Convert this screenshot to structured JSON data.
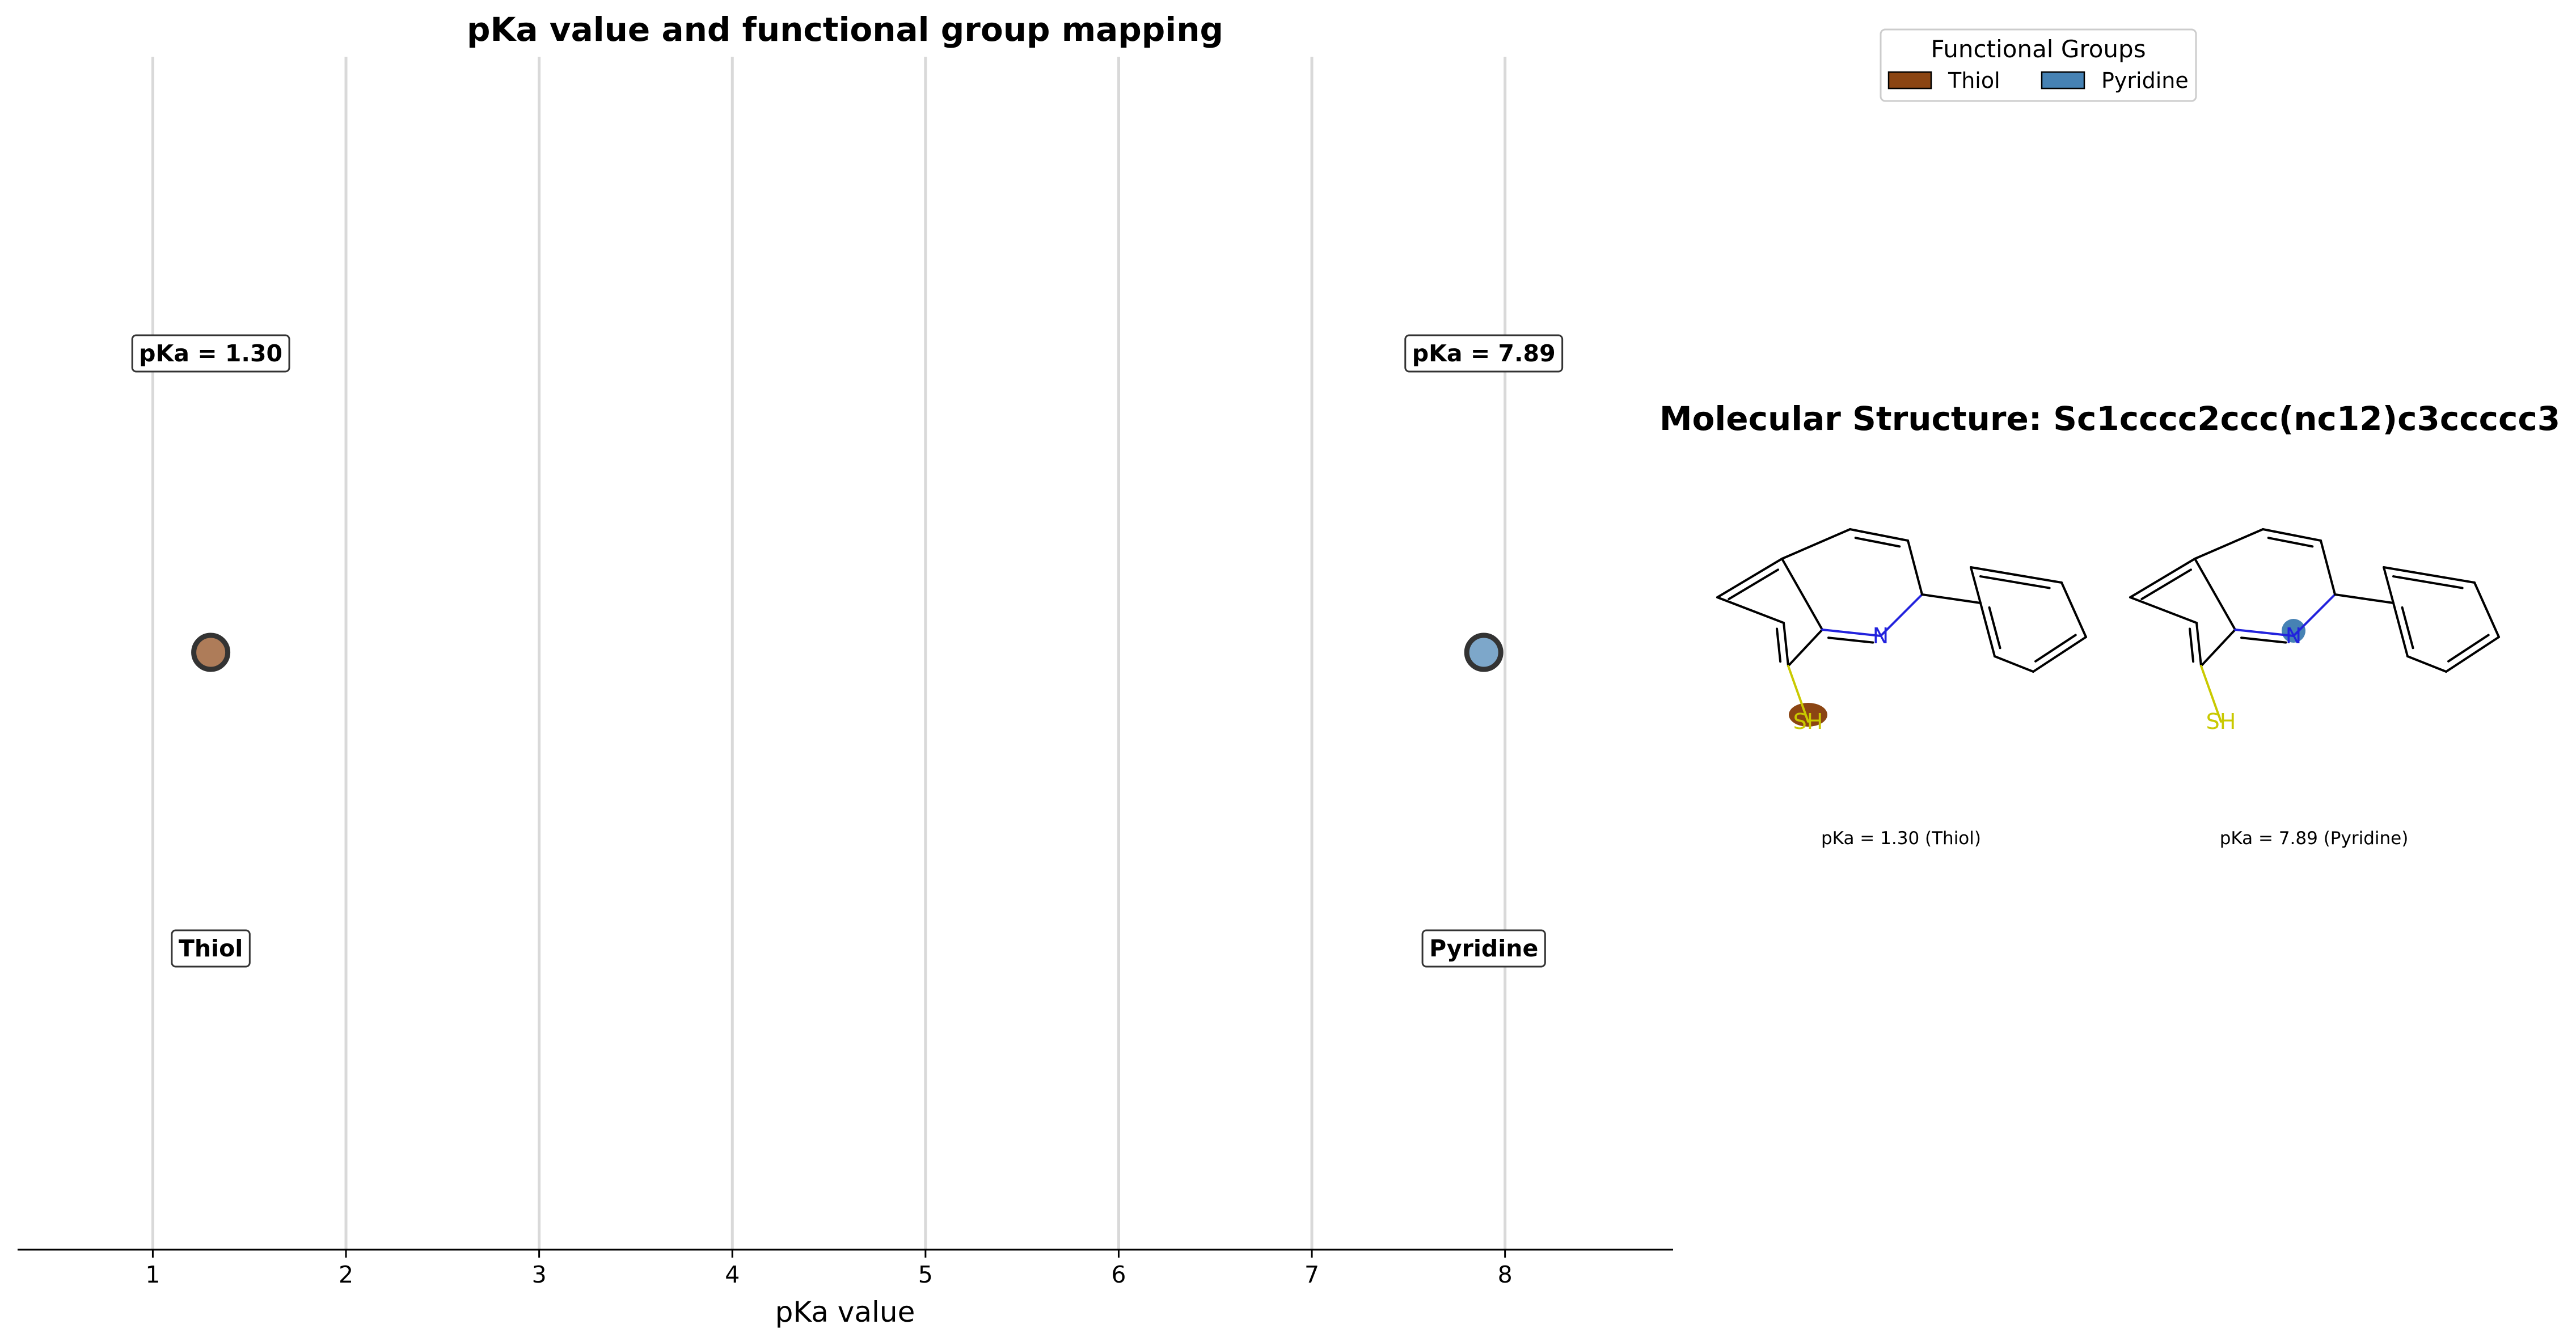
{
  "chart_data": {
    "type": "scatter",
    "title": "pKa value and functional group mapping",
    "xlabel": "pKa value",
    "ylabel": "",
    "xlim": [
      0.3,
      8.87
    ],
    "xticks": [
      1,
      2,
      3,
      4,
      5,
      6,
      7,
      8
    ],
    "grid": "vertical",
    "points": [
      {
        "group": "Thiol",
        "pka": 1.3,
        "pka_label": "pKa = 1.30",
        "color": "#8B4513"
      },
      {
        "group": "Pyridine",
        "pka": 7.89,
        "pka_label": "pKa = 7.89",
        "color": "#4682B4"
      }
    ],
    "legend": {
      "title": "Functional Groups",
      "placement": "top-right",
      "entries": [
        {
          "label": "Thiol",
          "color": "#8B4513"
        },
        {
          "label": "Pyridine",
          "color": "#4682B4"
        }
      ]
    }
  },
  "molecule_panel": {
    "title": "Molecular Structure: Sc1cccc2ccc(nc12)c3ccccc3",
    "atom_labels": {
      "nitrogen": "N",
      "thiol": "SH"
    },
    "structures": [
      {
        "highlight": "thiol",
        "highlight_color": "#8B4513",
        "caption": "pKa = 1.30 (Thiol)"
      },
      {
        "highlight": "nitrogen",
        "highlight_color": "#4682B4",
        "caption": "pKa = 7.89 (Pyridine)"
      }
    ]
  }
}
